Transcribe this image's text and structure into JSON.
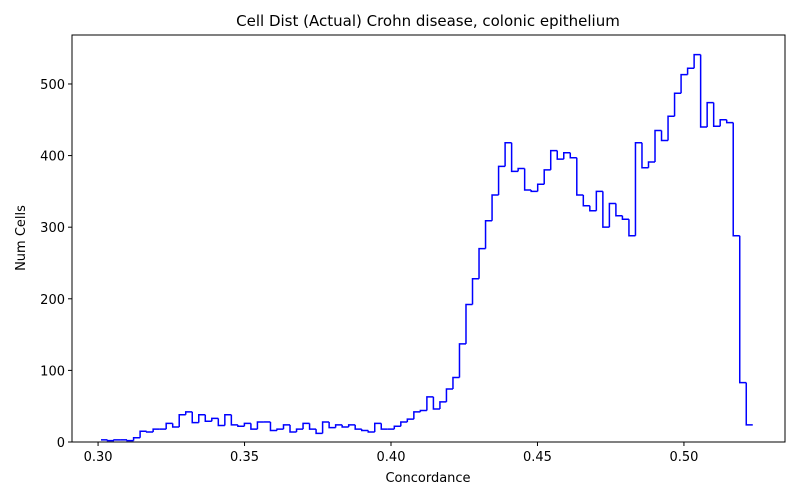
{
  "chart_data": {
    "type": "histogram",
    "title": "Cell Dist (Actual) Crohn disease, colonic epithelium",
    "xlabel": "Concordance",
    "ylabel": "Num Cells",
    "color": "#0000ff",
    "bins": [
      0.301,
      0.303225,
      0.30545,
      0.307675,
      0.3099,
      0.312125,
      0.31435,
      0.316575,
      0.3188,
      0.321025,
      0.32325,
      0.325475,
      0.3277,
      0.329925,
      0.33215,
      0.334375,
      0.3366,
      0.338825,
      0.34105,
      0.343275,
      0.3455,
      0.347725,
      0.34995,
      0.352175,
      0.3544,
      0.356625,
      0.35885,
      0.361075,
      0.3633,
      0.365525,
      0.36775,
      0.369975,
      0.3722,
      0.374425,
      0.37665,
      0.378875,
      0.3811,
      0.383325,
      0.38555,
      0.387775,
      0.39,
      0.392225,
      0.39445,
      0.396675,
      0.3989,
      0.401125,
      0.40335,
      0.405575,
      0.4078,
      0.410025,
      0.41225,
      0.414475,
      0.4167,
      0.418925,
      0.42115,
      0.423375,
      0.4256,
      0.427825,
      0.43005,
      0.432275,
      0.4345,
      0.436725,
      0.43895,
      0.441175,
      0.4434,
      0.445625,
      0.44785,
      0.450075,
      0.4523,
      0.454525,
      0.45675,
      0.458975,
      0.4612,
      0.463425,
      0.46565,
      0.467875,
      0.4701,
      0.472325,
      0.47455,
      0.476775,
      0.479,
      0.481225,
      0.48345,
      0.485675,
      0.4879,
      0.490125,
      0.49235,
      0.494575,
      0.4968,
      0.499025,
      0.50125,
      0.503475,
      0.5057,
      0.507925,
      0.51015,
      0.512375,
      0.5146,
      0.516825,
      0.51905,
      0.521275,
      0.5235
    ],
    "counts": [
      3,
      2,
      3,
      3,
      2,
      6,
      15,
      14,
      18,
      18,
      26,
      21,
      38,
      42,
      27,
      38,
      29,
      33,
      23,
      38,
      24,
      22,
      26,
      18,
      28,
      28,
      16,
      18,
      24,
      14,
      18,
      26,
      18,
      12,
      28,
      20,
      24,
      21,
      24,
      18,
      16,
      14,
      26,
      18,
      18,
      22,
      28,
      32,
      42,
      44,
      63,
      46,
      56,
      74,
      90,
      137,
      192,
      228,
      270,
      309,
      345,
      385,
      418,
      378,
      382,
      352,
      350,
      360,
      380,
      407,
      395,
      404,
      397,
      345,
      330,
      323,
      350,
      300,
      333,
      316,
      311,
      288,
      418,
      383,
      391,
      435,
      421,
      455,
      487,
      513,
      522,
      541,
      440,
      474,
      441,
      450,
      446,
      288,
      83,
      24
    ],
    "xlim": [
      0.2911,
      0.5345
    ],
    "ylim": [
      0,
      568.4
    ],
    "xticks": [
      {
        "value": 0.3,
        "label": "0.30"
      },
      {
        "value": 0.35,
        "label": "0.35"
      },
      {
        "value": 0.4,
        "label": "0.40"
      },
      {
        "value": 0.45,
        "label": "0.45"
      },
      {
        "value": 0.5,
        "label": "0.50"
      }
    ],
    "yticks": [
      0,
      100,
      200,
      300,
      400,
      500
    ]
  }
}
